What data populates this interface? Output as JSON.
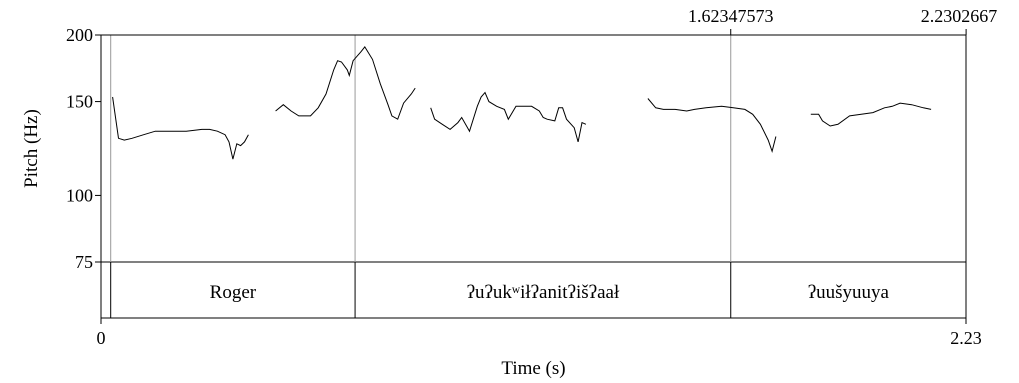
{
  "chart_data": {
    "type": "line",
    "xlabel": "Time (s)",
    "ylabel": "Pitch (Hz)",
    "xlim": [
      0,
      2.23
    ],
    "ylim": [
      75,
      200
    ],
    "x_tick_labels": [
      "0",
      "2.23"
    ],
    "y_ticks": [
      {
        "value": 200,
        "label": "200"
      },
      {
        "value": 150,
        "label": "150"
      },
      {
        "value": 100,
        "label": "100"
      },
      {
        "value": 75,
        "label": "75"
      }
    ],
    "cursor_labels": [
      {
        "value": 1.62347573,
        "label": "1.62347573"
      },
      {
        "value": 2.2302667,
        "label": "2.2302667"
      }
    ],
    "boundaries": [
      0.025,
      0.655,
      1.6235
    ],
    "tier": [
      {
        "label": "Roger",
        "start": 0.025,
        "end": 0.655
      },
      {
        "label": "ʔuʔukʷiłʔanitʔišʔaał",
        "start": 0.655,
        "end": 1.6235
      },
      {
        "label": "ʔuušyuuya",
        "start": 1.6235,
        "end": 2.23
      }
    ],
    "series": [
      {
        "values": [
          [
            0.03,
            153
          ],
          [
            0.045,
            128
          ],
          [
            0.06,
            127
          ],
          [
            0.08,
            128
          ],
          [
            0.11,
            130
          ],
          [
            0.14,
            132
          ],
          [
            0.18,
            132
          ],
          [
            0.22,
            132
          ],
          [
            0.26,
            133
          ],
          [
            0.28,
            133
          ],
          [
            0.3,
            132
          ],
          [
            0.32,
            130
          ],
          [
            0.33,
            126
          ],
          [
            0.34,
            117
          ],
          [
            0.35,
            125
          ],
          [
            0.36,
            124
          ],
          [
            0.37,
            126
          ],
          [
            0.38,
            130
          ]
        ]
      },
      {
        "values": [
          [
            0.45,
            144
          ],
          [
            0.47,
            148
          ],
          [
            0.49,
            144
          ],
          [
            0.51,
            141
          ],
          [
            0.54,
            141
          ],
          [
            0.56,
            146
          ],
          [
            0.58,
            155
          ],
          [
            0.6,
            172
          ],
          [
            0.61,
            179
          ],
          [
            0.62,
            178
          ],
          [
            0.635,
            172
          ],
          [
            0.64,
            168
          ],
          [
            0.65,
            179
          ],
          [
            0.67,
            186
          ],
          [
            0.68,
            190
          ],
          [
            0.7,
            180
          ],
          [
            0.72,
            162
          ],
          [
            0.74,
            148
          ],
          [
            0.75,
            141
          ],
          [
            0.765,
            139
          ],
          [
            0.78,
            149
          ],
          [
            0.8,
            155
          ],
          [
            0.81,
            159
          ]
        ]
      },
      {
        "values": [
          [
            0.85,
            146
          ],
          [
            0.86,
            139
          ],
          [
            0.88,
            136
          ],
          [
            0.9,
            133
          ],
          [
            0.92,
            137
          ],
          [
            0.93,
            140
          ],
          [
            0.95,
            132
          ],
          [
            0.97,
            147
          ],
          [
            0.98,
            153
          ],
          [
            0.99,
            156
          ],
          [
            1.0,
            150
          ],
          [
            1.02,
            147
          ],
          [
            1.04,
            145
          ],
          [
            1.05,
            139
          ],
          [
            1.07,
            147
          ],
          [
            1.09,
            147
          ],
          [
            1.11,
            147
          ],
          [
            1.13,
            144
          ],
          [
            1.14,
            140
          ],
          [
            1.15,
            139
          ],
          [
            1.17,
            138
          ],
          [
            1.18,
            146
          ],
          [
            1.19,
            146
          ],
          [
            1.2,
            139
          ],
          [
            1.22,
            134
          ],
          [
            1.23,
            126
          ],
          [
            1.24,
            137
          ],
          [
            1.25,
            136
          ]
        ]
      },
      {
        "values": [
          [
            1.41,
            152
          ],
          [
            1.43,
            146
          ],
          [
            1.45,
            145
          ],
          [
            1.48,
            145
          ],
          [
            1.51,
            144
          ],
          [
            1.53,
            145
          ],
          [
            1.56,
            146
          ],
          [
            1.6,
            147
          ],
          [
            1.63,
            146
          ],
          [
            1.66,
            145
          ],
          [
            1.68,
            142
          ],
          [
            1.7,
            136
          ],
          [
            1.72,
            127
          ],
          [
            1.73,
            121
          ],
          [
            1.74,
            129
          ]
        ]
      },
      {
        "values": [
          [
            1.83,
            142
          ],
          [
            1.85,
            142
          ],
          [
            1.86,
            138
          ],
          [
            1.88,
            135
          ],
          [
            1.9,
            136
          ],
          [
            1.93,
            141
          ],
          [
            1.96,
            142
          ],
          [
            1.99,
            143
          ],
          [
            2.02,
            146
          ],
          [
            2.04,
            147
          ],
          [
            2.06,
            149
          ],
          [
            2.09,
            148
          ],
          [
            2.12,
            146
          ],
          [
            2.14,
            145
          ]
        ]
      }
    ]
  }
}
